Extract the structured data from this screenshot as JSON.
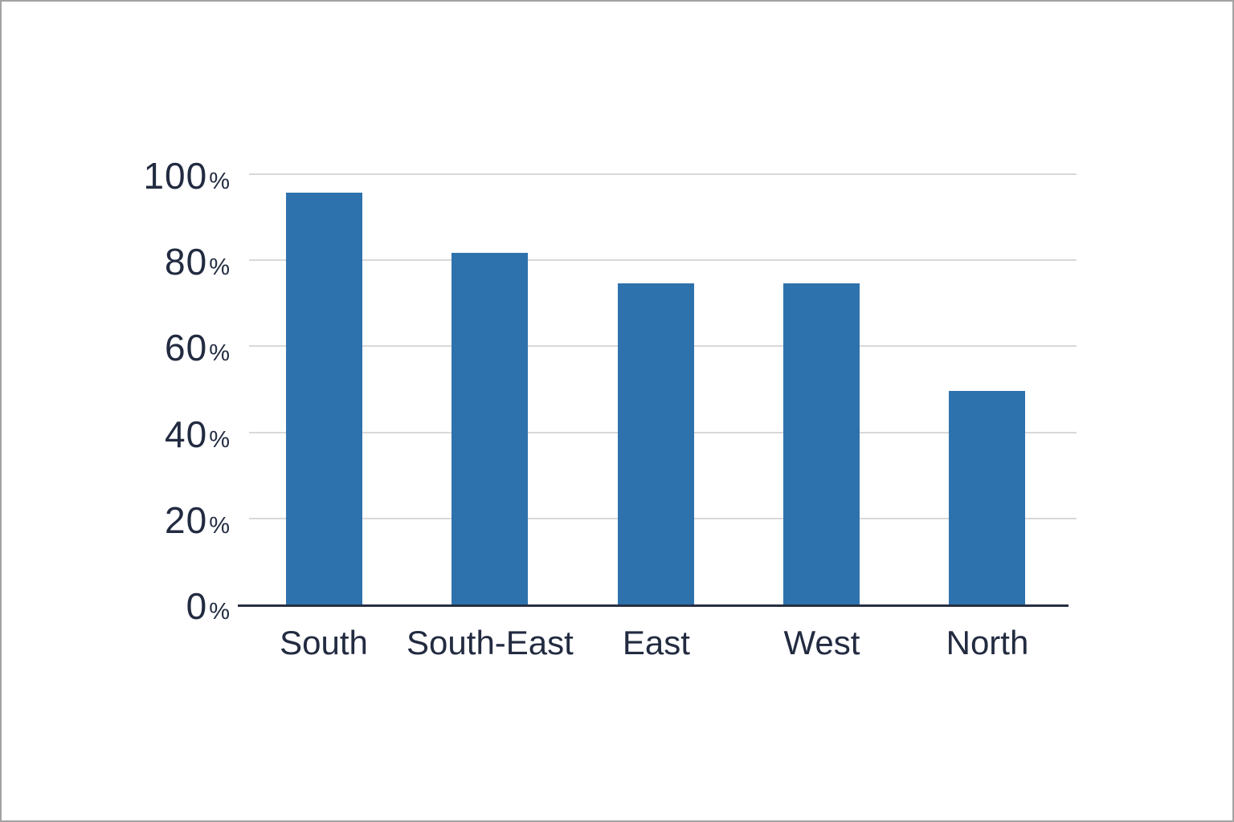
{
  "chart_data": {
    "type": "bar",
    "title": "",
    "categories": [
      "South",
      "South-East",
      "East",
      "West",
      "North"
    ],
    "values": [
      96,
      82,
      75,
      75,
      50
    ],
    "value_unit": "%",
    "xlabel": "",
    "ylabel": "",
    "ylim": [
      0,
      100
    ],
    "yticks": [
      {
        "value": 100,
        "label_num": "100",
        "label_suffix": "%"
      },
      {
        "value": 80,
        "label_num": "80",
        "label_suffix": "%"
      },
      {
        "value": 60,
        "label_num": "60",
        "label_suffix": "%"
      },
      {
        "value": 40,
        "label_num": "40",
        "label_suffix": "%"
      },
      {
        "value": 20,
        "label_num": "20",
        "label_suffix": "%"
      },
      {
        "value": 0,
        "label_num": "0",
        "label_suffix": "%"
      }
    ],
    "grid": "horizontal",
    "legend_position": "none",
    "colors": {
      "bar": "#2e72ad",
      "gridline": "#d8d8d8",
      "axis_line": "#272f42",
      "text": "#222b40",
      "background": "#ffffff",
      "canvas_border": "#a3a3a3"
    }
  }
}
